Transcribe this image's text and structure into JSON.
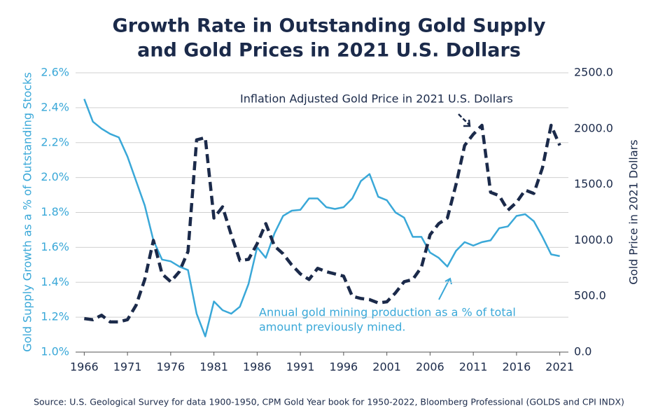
{
  "chart_data": {
    "type": "line",
    "title": [
      "Growth Rate in Outstanding Gold Supply",
      "and Gold Prices in 2021 U.S. Dollars"
    ],
    "y_label": "Gold Supply Growth as a % of Outstanding Stocks",
    "y2_label": "Gold Price in 2021 Dollars",
    "source": "Source: U.S. Geological Survey for data 1900-1950, CPM Gold Year book for 1950-2022, Bloomberg Professional (GOLDS and CPI INDX)",
    "annotations": [
      {
        "lines": [
          "Inflation Adjusted Gold Price in 2021 U.S. Dollars"
        ],
        "color": "#1b2a4a"
      },
      {
        "lines": [
          "Annual gold mining production as a % of total",
          "amount previously mined."
        ],
        "color": "#3aa8d8"
      }
    ],
    "x": [
      1966,
      1967,
      1968,
      1969,
      1970,
      1971,
      1972,
      1973,
      1974,
      1975,
      1976,
      1977,
      1978,
      1979,
      1980,
      1981,
      1982,
      1983,
      1984,
      1985,
      1986,
      1987,
      1988,
      1989,
      1990,
      1991,
      1992,
      1993,
      1994,
      1995,
      1996,
      1997,
      1998,
      1999,
      2000,
      2001,
      2002,
      2003,
      2004,
      2005,
      2006,
      2007,
      2008,
      2009,
      2010,
      2011,
      2012,
      2013,
      2014,
      2015,
      2016,
      2017,
      2018,
      2019,
      2020,
      2021
    ],
    "series": [
      {
        "name": "Annual gold mining production as a % of total amount previously mined",
        "color": "#3aa8d8",
        "axis": "y",
        "values": [
          2.45,
          2.32,
          2.28,
          2.25,
          2.23,
          2.12,
          1.98,
          1.84,
          1.64,
          1.53,
          1.52,
          1.49,
          1.47,
          1.22,
          1.09,
          1.29,
          1.24,
          1.22,
          1.26,
          1.39,
          1.6,
          1.54,
          1.68,
          1.78,
          1.81,
          1.815,
          1.88,
          1.88,
          1.83,
          1.82,
          1.83,
          1.88,
          1.98,
          2.02,
          1.89,
          1.87,
          1.8,
          1.77,
          1.66,
          1.66,
          1.57,
          1.54,
          1.49,
          1.58,
          1.63,
          1.61,
          1.63,
          1.64,
          1.71,
          1.72,
          1.78,
          1.79,
          1.75,
          1.66,
          1.56,
          1.55
        ]
      },
      {
        "name": "Inflation Adjusted Gold Price in 2021 U.S. Dollars",
        "color": "#1b2a4a",
        "axis": "y2",
        "values": [
          300,
          290,
          330,
          270,
          270,
          290,
          420,
          650,
          1000,
          700,
          630,
          720,
          900,
          1900,
          1920,
          1200,
          1300,
          1050,
          820,
          830,
          970,
          1150,
          950,
          880,
          780,
          700,
          650,
          750,
          720,
          700,
          680,
          500,
          480,
          470,
          440,
          450,
          530,
          630,
          650,
          760,
          1050,
          1150,
          1200,
          1500,
          1850,
          1950,
          2030,
          1430,
          1400,
          1270,
          1340,
          1450,
          1420,
          1650,
          2030,
          1850
        ]
      }
    ],
    "xlim": [
      1965,
      2022
    ],
    "xticks": [
      1966,
      1971,
      1976,
      1981,
      1986,
      1991,
      1996,
      2001,
      2006,
      2011,
      2016,
      2021
    ],
    "ylim": [
      1.0,
      2.6
    ],
    "yticks": [
      {
        "value": 1.0,
        "label": "1.0%"
      },
      {
        "value": 1.2,
        "label": "1.2%"
      },
      {
        "value": 1.4,
        "label": "1.4%"
      },
      {
        "value": 1.6,
        "label": "1.6%"
      },
      {
        "value": 1.8,
        "label": "1.8%"
      },
      {
        "value": 2.0,
        "label": "2.0%"
      },
      {
        "value": 2.2,
        "label": "2.2%"
      },
      {
        "value": 2.4,
        "label": "2.4%"
      },
      {
        "value": 2.6,
        "label": "2.6%"
      }
    ],
    "y2lim": [
      0,
      2500
    ],
    "y2ticks": [
      {
        "value": 0,
        "label": "0.0"
      },
      {
        "value": 500,
        "label": "500.0"
      },
      {
        "value": 1000,
        "label": "1000.0"
      },
      {
        "value": 1500,
        "label": "1500.0"
      },
      {
        "value": 2000,
        "label": "2000.0"
      },
      {
        "value": 2500,
        "label": "2500.0"
      }
    ],
    "grid": true
  }
}
